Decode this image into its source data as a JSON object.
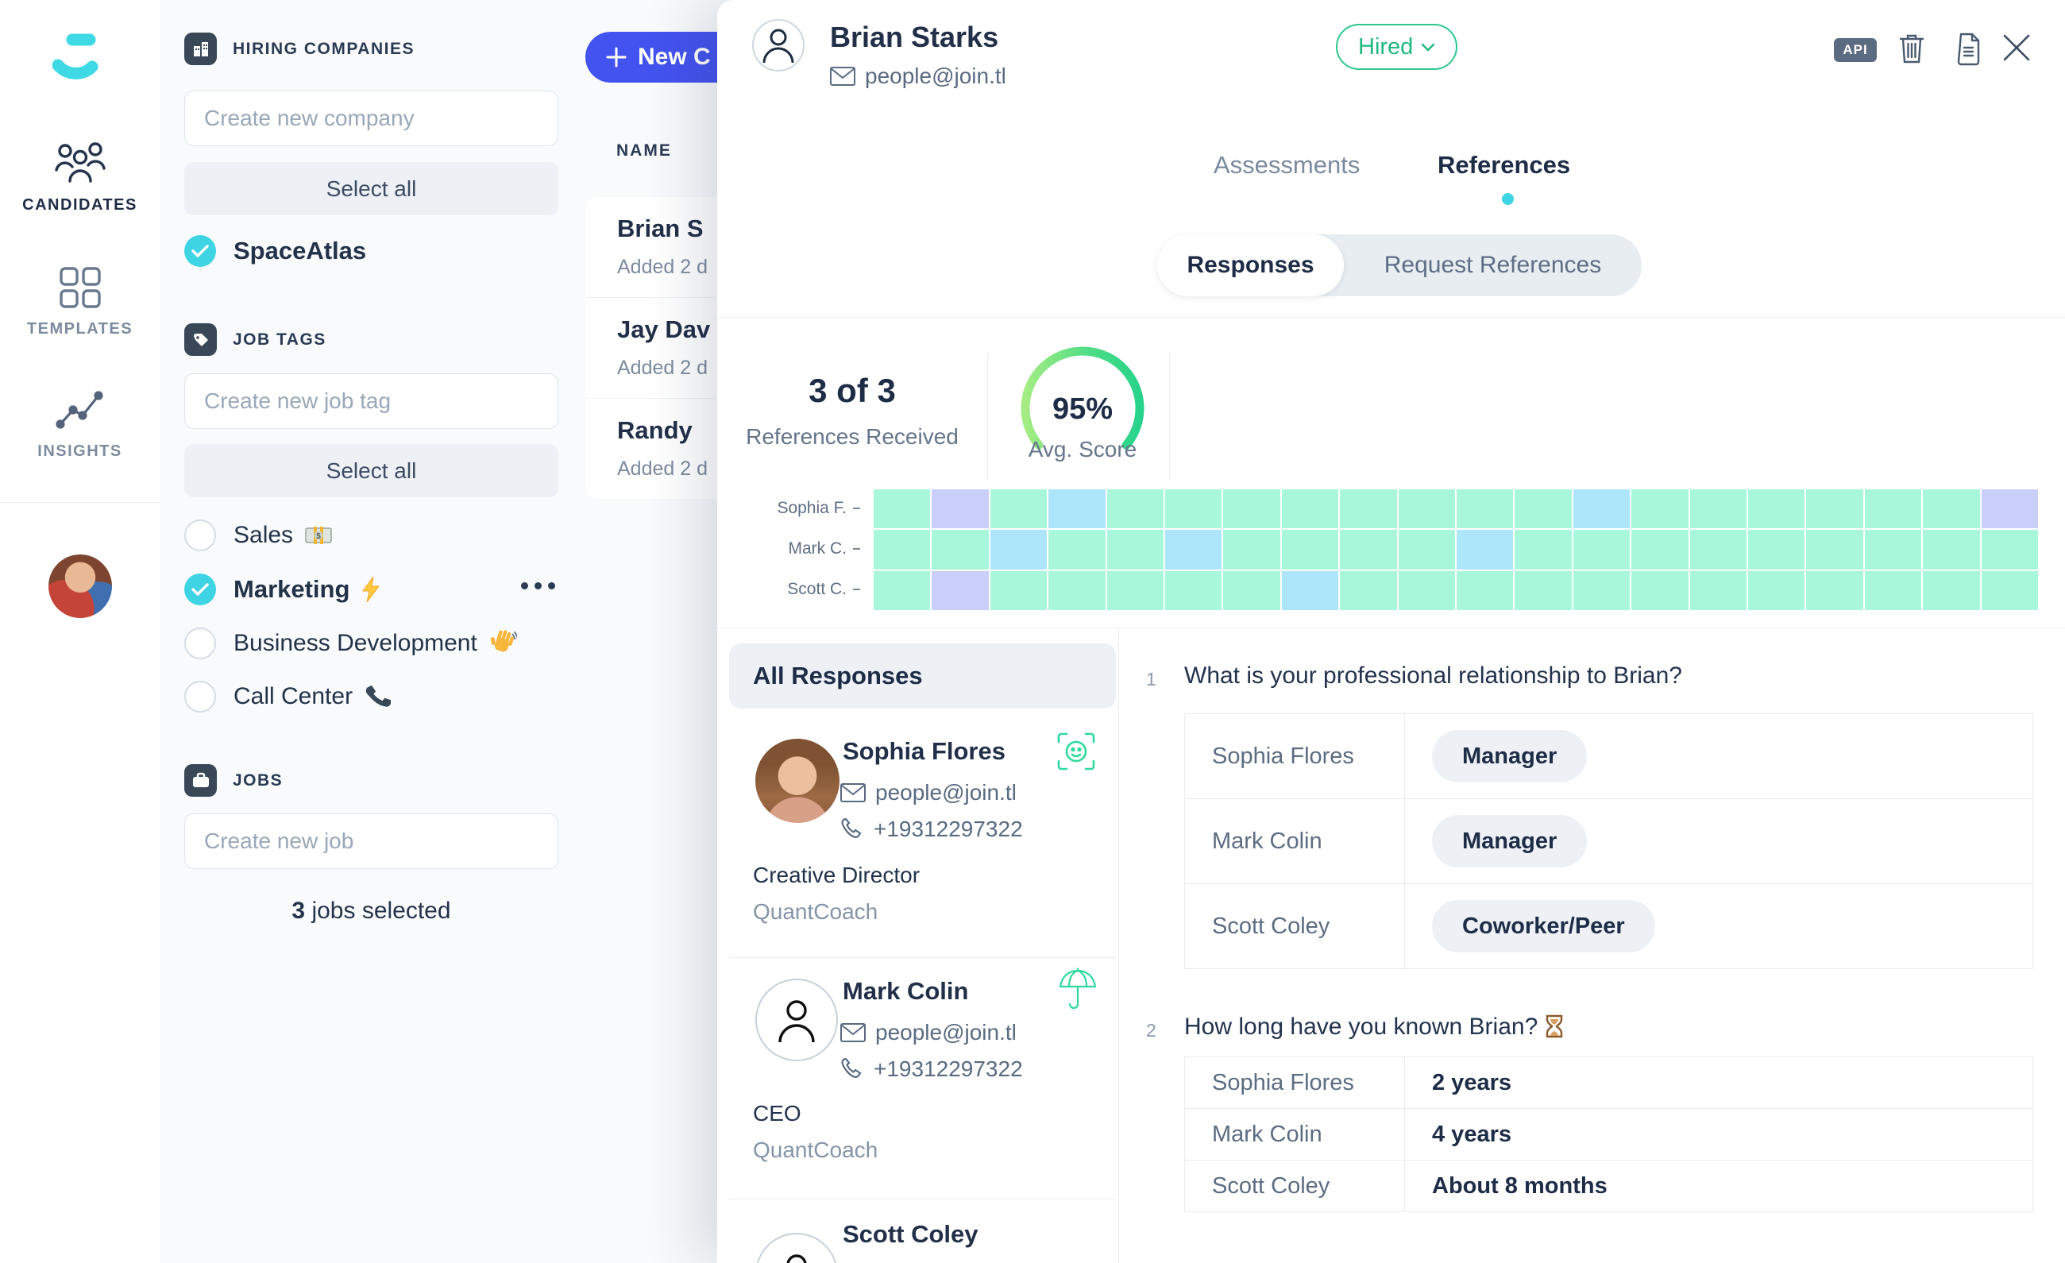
{
  "sidebar": {
    "nav": [
      {
        "label": "CANDIDATES",
        "icon": "people-group-icon",
        "active": true
      },
      {
        "label": "TEMPLATES",
        "icon": "grid-icon",
        "active": false
      },
      {
        "label": "INSIGHTS",
        "icon": "chart-line-icon",
        "active": false
      }
    ]
  },
  "filters": {
    "companies": {
      "title": "HIRING COMPANIES",
      "icon": "building-icon",
      "placeholder": "Create new company",
      "select_all": "Select all",
      "items": [
        {
          "label": "SpaceAtlas",
          "checked": true
        }
      ]
    },
    "job_tags": {
      "title": "JOB TAGS",
      "icon": "tag-icon",
      "placeholder": "Create new job tag",
      "select_all": "Select all",
      "items": [
        {
          "label": "Sales",
          "icon": "money-icon",
          "checked": false
        },
        {
          "label": "Marketing",
          "icon": "bolt-icon",
          "checked": true,
          "has_menu": true
        },
        {
          "label": "Business Development",
          "icon": "wave-icon",
          "checked": false
        },
        {
          "label": "Call Center",
          "icon": "phone-emoji-icon",
          "checked": false
        }
      ]
    },
    "jobs": {
      "title": "JOBS",
      "icon": "briefcase-icon",
      "placeholder": "Create new job",
      "selected_count": "3",
      "selected_text": " jobs selected"
    }
  },
  "candidates": {
    "new_button": "New C",
    "name_header": "NAME",
    "rows": [
      {
        "name": "Brian S",
        "added": "Added 2 d"
      },
      {
        "name": "Jay Dav",
        "added": "Added 2 d"
      },
      {
        "name": "Randy",
        "added": "Added 2 d"
      }
    ]
  },
  "profile": {
    "name": "Brian Starks",
    "email": "people@join.tl",
    "status": "Hired",
    "api_label": "API"
  },
  "tabs": {
    "assessments": "Assessments",
    "references": "References"
  },
  "toggle": {
    "responses": "Responses",
    "request": "Request References"
  },
  "stats": {
    "received_value": "3 of 3",
    "received_label": "References Received",
    "score_value": "95%",
    "score_label": "Avg. Score"
  },
  "responses": {
    "header": "All Responses",
    "list": [
      {
        "name": "Sophia Flores",
        "email": "people@join.tl",
        "phone": "+19312297322",
        "role": "Creative Director",
        "company": "QuantCoach",
        "badge": "face-scan-icon"
      },
      {
        "name": "Mark Colin",
        "email": "people@join.tl",
        "phone": "+19312297322",
        "role": "CEO",
        "company": "QuantCoach",
        "badge": "umbrella-icon"
      },
      {
        "name": "Scott Coley"
      }
    ]
  },
  "questions": [
    {
      "num": "1",
      "text": "What is your professional relationship to Brian?",
      "style": "pill",
      "answers": [
        {
          "name": "Sophia Flores",
          "value": "Manager"
        },
        {
          "name": "Mark Colin",
          "value": "Manager"
        },
        {
          "name": "Scott Coley",
          "value": "Coworker/Peer"
        }
      ]
    },
    {
      "num": "2",
      "text": "How long have you known Brian?",
      "emoji": "hourglass-icon",
      "style": "text",
      "answers": [
        {
          "name": "Sophia Flores",
          "value": "2 years"
        },
        {
          "name": "Mark Colin",
          "value": "4 years"
        },
        {
          "name": "Scott Coley",
          "value": "About 8 months"
        }
      ]
    }
  ],
  "chart_data": [
    {
      "type": "heatmap",
      "rows": [
        "Sophia F.",
        "Mark C.",
        "Scott C."
      ],
      "columns": 20,
      "cell_colors": {
        "g": "#a9f7db",
        "b": "#ade6fa",
        "p": "#c9cff8"
      },
      "cells": [
        [
          "g",
          "p",
          "g",
          "b",
          "g",
          "g",
          "g",
          "g",
          "g",
          "g",
          "g",
          "g",
          "b",
          "g",
          "g",
          "g",
          "g",
          "g",
          "g",
          "p"
        ],
        [
          "g",
          "g",
          "b",
          "g",
          "g",
          "b",
          "g",
          "g",
          "g",
          "g",
          "b",
          "g",
          "g",
          "g",
          "g",
          "g",
          "g",
          "g",
          "g",
          "g"
        ],
        [
          "g",
          "p",
          "g",
          "g",
          "g",
          "g",
          "g",
          "b",
          "g",
          "g",
          "g",
          "g",
          "g",
          "g",
          "g",
          "g",
          "g",
          "g",
          "g",
          "g"
        ]
      ]
    },
    {
      "type": "gauge",
      "value": 95,
      "unit": "%",
      "label": "Avg. Score",
      "colors": [
        "#a5ec83",
        "#27d38b"
      ]
    }
  ],
  "colors": {
    "accent_cyan": "#3ed4e4",
    "accent_blue": "#4353ef",
    "accent_green": "#2bc98d"
  }
}
